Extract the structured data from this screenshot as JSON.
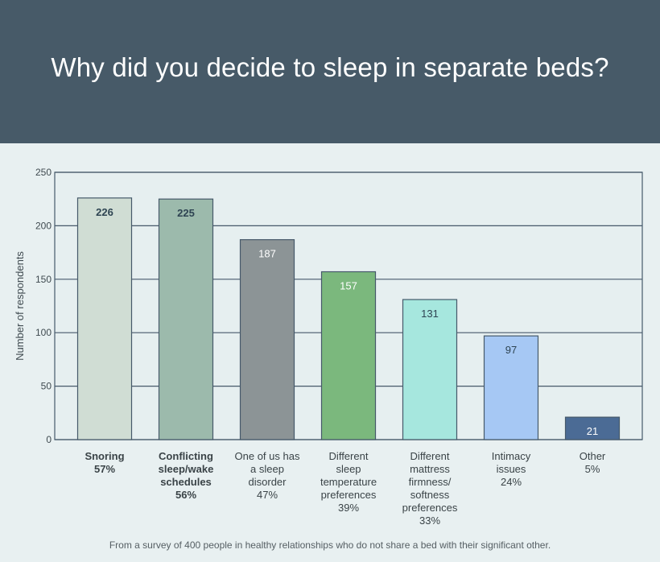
{
  "header": {
    "title": "Why did you decide to sleep in separate beds?"
  },
  "footnote": "From a survey of 400 people in healthy relationships who do not share a bed with their significant other.",
  "colors": {
    "header_bg": "#475a68",
    "page_bg": "#e8f0f1",
    "bars": [
      "#d0ddd4",
      "#9cbaac",
      "#8c9496",
      "#7bb87d",
      "#a6e7de",
      "#a6c8f4",
      "#4b6b95"
    ],
    "label_dark": "#2e4452",
    "label_light": "#ffffff"
  },
  "chart_data": {
    "type": "bar",
    "categories": [
      [
        "Snoring",
        "57%"
      ],
      [
        "Conflicting",
        "sleep/wake",
        "schedules",
        "56%"
      ],
      [
        "One of us has",
        "a sleep",
        "disorder",
        "47%"
      ],
      [
        "Different",
        "sleep",
        "temperature",
        "preferences",
        "39%"
      ],
      [
        "Different",
        "mattress",
        "firmness/",
        "softness",
        "preferences",
        "33%"
      ],
      [
        "Intimacy",
        "issues",
        "24%"
      ],
      [
        "Other",
        "5%"
      ]
    ],
    "values": [
      226,
      225,
      187,
      157,
      131,
      97,
      21
    ],
    "bold_categories": [
      0,
      1
    ],
    "ylabel": "Number of respondents",
    "xlabel": "",
    "ylim": [
      0,
      250
    ],
    "yticks": [
      0,
      50,
      100,
      150,
      200,
      250
    ],
    "grid": true
  }
}
